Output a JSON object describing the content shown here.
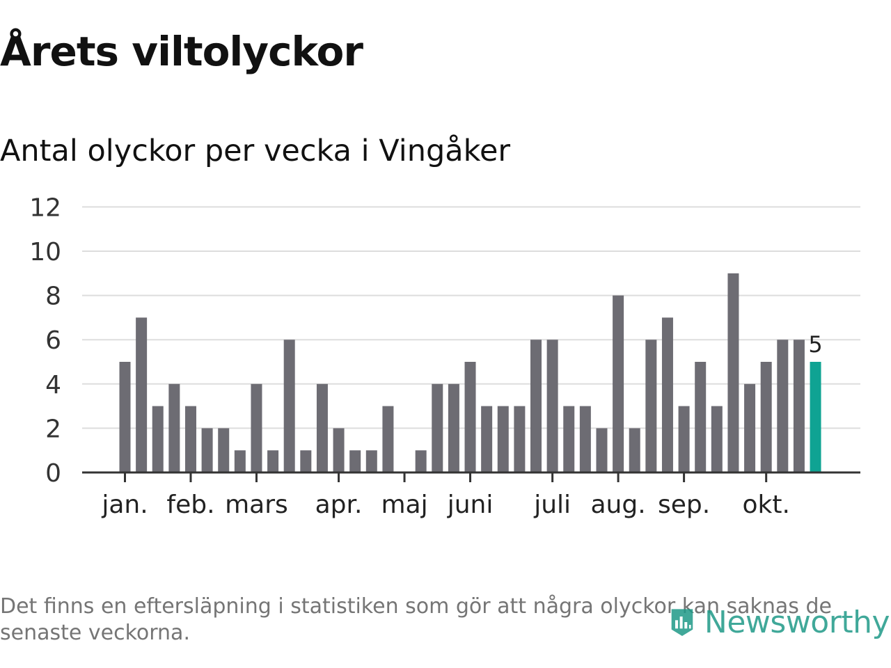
{
  "title": "Årets viltolyckor",
  "subtitle": "Antal olyckor per vecka i Vingåker",
  "footnote": "Det finns en eftersläpning i statistiken som gör att några olyckor kan saknas de senaste veckorna.",
  "brand": {
    "name": "Newsworthy",
    "icon": "newsworthy-logo-icon"
  },
  "colors": {
    "bar": "#6d6c73",
    "highlight": "#0fa393",
    "grid": "#dddddd",
    "axis": "#333333",
    "text": "#111111",
    "footnote": "#757575",
    "brand": "#1f9a88"
  },
  "chart_data": {
    "type": "bar",
    "title": "Antal olyckor per vecka i Vingåker",
    "xlabel": "",
    "ylabel": "",
    "ylim": [
      0,
      12
    ],
    "yticks": [
      "0",
      "2",
      "4",
      "6",
      "8",
      "10",
      "12"
    ],
    "grid": true,
    "x": [
      1,
      2,
      3,
      4,
      5,
      6,
      7,
      8,
      9,
      10,
      11,
      12,
      13,
      14,
      15,
      16,
      17,
      18,
      19,
      20,
      21,
      22,
      23,
      24,
      25,
      26,
      27,
      28,
      29,
      30,
      31,
      32,
      33,
      34,
      35,
      36,
      37,
      38,
      39,
      40,
      41,
      42,
      43
    ],
    "values": [
      5,
      7,
      3,
      4,
      3,
      2,
      2,
      1,
      4,
      1,
      6,
      1,
      4,
      2,
      1,
      1,
      3,
      0,
      1,
      4,
      4,
      5,
      3,
      3,
      3,
      6,
      6,
      3,
      3,
      2,
      8,
      2,
      6,
      7,
      3,
      5,
      3,
      9,
      4,
      5,
      6,
      6,
      5
    ],
    "highlight_index": 42,
    "value_labels": [
      {
        "index": 42,
        "text": "5"
      }
    ],
    "month_labels": [
      {
        "label": "jan.",
        "week": 1
      },
      {
        "label": "feb.",
        "week": 5
      },
      {
        "label": "mars",
        "week": 9
      },
      {
        "label": "apr.",
        "week": 14
      },
      {
        "label": "maj",
        "week": 18
      },
      {
        "label": "juni",
        "week": 22
      },
      {
        "label": "juli",
        "week": 27
      },
      {
        "label": "aug.",
        "week": 31
      },
      {
        "label": "sep.",
        "week": 35
      },
      {
        "label": "okt.",
        "week": 40
      }
    ]
  }
}
